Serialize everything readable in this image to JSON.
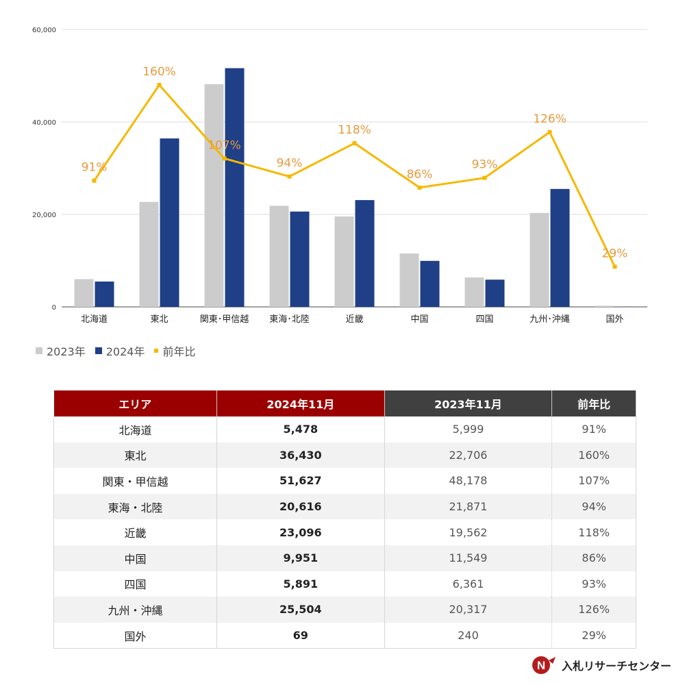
{
  "chart_data": {
    "type": "bar",
    "categories": [
      "北海道",
      "東北",
      "関東･甲信越",
      "東海･北陸",
      "近畿",
      "中国",
      "四国",
      "九州･沖縄",
      "国外"
    ],
    "series": [
      {
        "name": "2023年",
        "values": [
          5999,
          22706,
          48178,
          21871,
          19562,
          11549,
          6361,
          20317,
          240
        ],
        "color": "#cccccc"
      },
      {
        "name": "2024年",
        "values": [
          5478,
          36430,
          51627,
          20616,
          23096,
          9951,
          5891,
          25504,
          69
        ],
        "color": "#1f3f87"
      }
    ],
    "line_series": {
      "name": "前年比",
      "values": [
        91,
        160,
        107,
        94,
        118,
        86,
        93,
        126,
        29
      ],
      "labels": [
        "91%",
        "160%",
        "107%",
        "94%",
        "118%",
        "86%",
        "93%",
        "126%",
        "29%"
      ],
      "color": "#f5b800",
      "label_color": "#e89a3c"
    },
    "yticks": [
      "0",
      "20,000",
      "40,000",
      "60,000"
    ],
    "ylim": [
      0,
      60000
    ],
    "ratio_lim": [
      0,
      200
    ],
    "grid": true,
    "legend_position": "bottom-left"
  },
  "table": {
    "headers": [
      "エリア",
      "2024年11月",
      "2023年11月",
      "前年比"
    ],
    "rows": [
      [
        "北海道",
        "5,478",
        "5,999",
        "91%"
      ],
      [
        "東北",
        "36,430",
        "22,706",
        "160%"
      ],
      [
        "関東・甲信越",
        "51,627",
        "48,178",
        "107%"
      ],
      [
        "東海・北陸",
        "20,616",
        "21,871",
        "94%"
      ],
      [
        "近畿",
        "23,096",
        "19,562",
        "118%"
      ],
      [
        "中国",
        "9,951",
        "11,549",
        "86%"
      ],
      [
        "四国",
        "5,891",
        "6,361",
        "93%"
      ],
      [
        "九州・沖縄",
        "25,504",
        "20,317",
        "126%"
      ],
      [
        "国外",
        "69",
        "240",
        "29%"
      ]
    ]
  },
  "logo": {
    "mark": "N",
    "text": "入札リサーチセンター",
    "color": "#b31c1c"
  }
}
